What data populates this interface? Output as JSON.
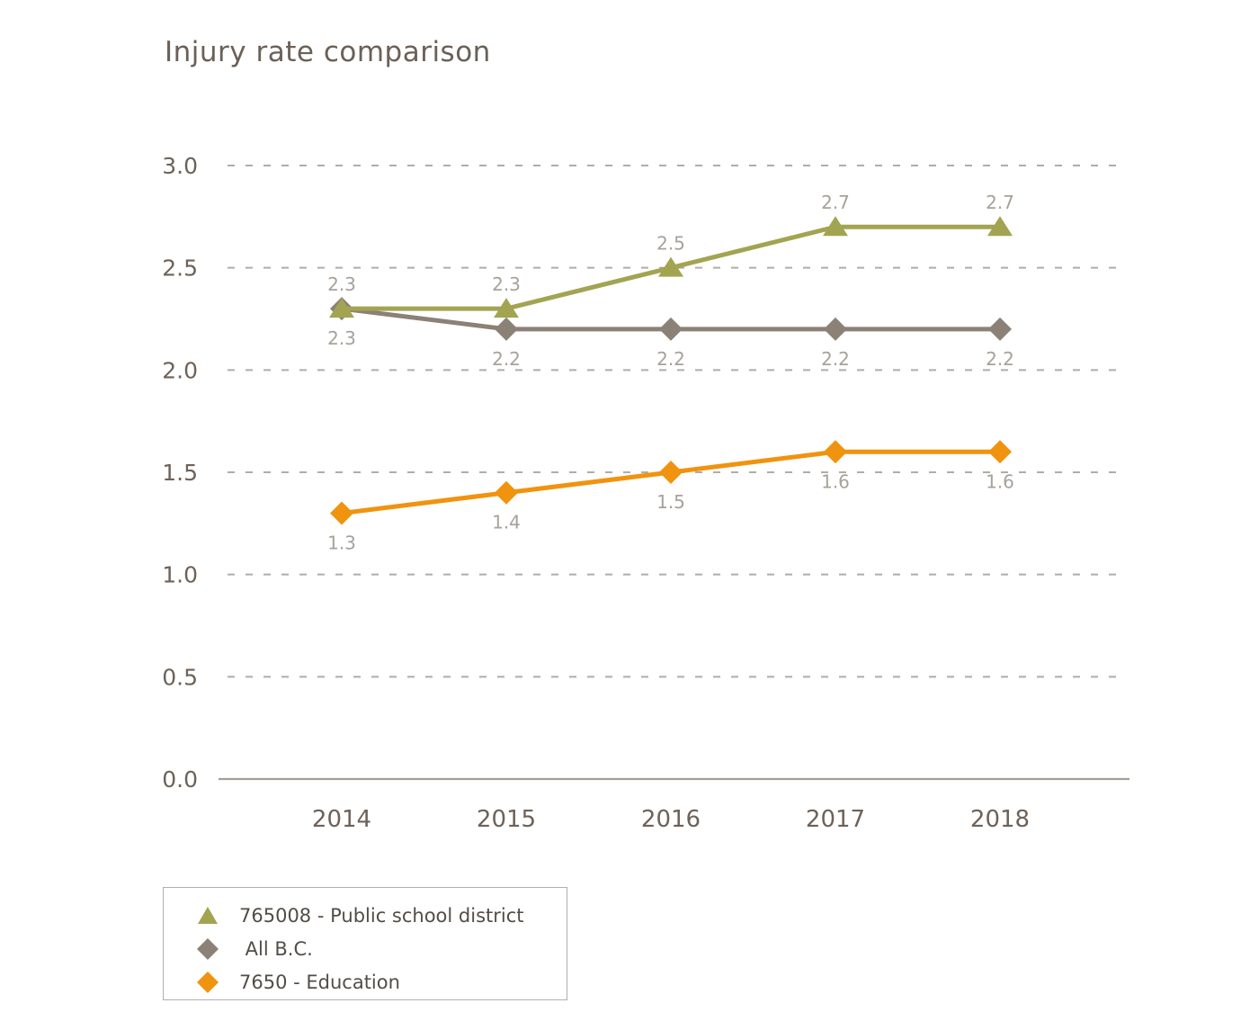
{
  "title": "Injury rate comparison",
  "chart_data": {
    "type": "line",
    "title": "Injury rate comparison",
    "x": [
      "2014",
      "2015",
      "2016",
      "2017",
      "2018"
    ],
    "xlabel": "",
    "ylabel": "",
    "ylim": [
      0.0,
      3.0
    ],
    "y_ticks": [
      "3.0",
      "2.5",
      "2.0",
      "1.5",
      "1.0",
      "0.5",
      "0.0"
    ],
    "grid": "horizontal-dashed",
    "legend_position": "bottom-left",
    "series": [
      {
        "id": "public-school-district",
        "name": "765008 - Public school district",
        "color": "#a3a451",
        "marker": "triangle",
        "label_position": "above",
        "values": [
          2.3,
          2.3,
          2.5,
          2.7,
          2.7
        ]
      },
      {
        "id": "all-bc",
        "name": "All B.C.",
        "color": "#8b8176",
        "marker": "diamond",
        "label_position": "below",
        "values": [
          2.3,
          2.2,
          2.2,
          2.2,
          2.2
        ]
      },
      {
        "id": "education",
        "name": "7650 - Education",
        "color": "#f0930e",
        "marker": "diamond",
        "label_position": "below",
        "values": [
          1.3,
          1.4,
          1.5,
          1.6,
          1.6
        ]
      }
    ]
  },
  "legend": {
    "items": [
      {
        "label": "765008 - Public school district",
        "marker": "triangle",
        "color": "#a3a451"
      },
      {
        "label": " All B.C.",
        "marker": "diamond",
        "color": "#8b8176"
      },
      {
        "label": "7650 - Education",
        "marker": "diamond",
        "color": "#f0930e"
      }
    ]
  },
  "colors": {
    "title_text": "#6b6057",
    "axis_text": "#6e6259",
    "data_label_text": "#a7a19b",
    "gridline": "#b2aca6",
    "axis_line": "#a49e98",
    "legend_border": "#b3aeaa",
    "legend_text": "#534d47",
    "background": "#ffffff"
  }
}
